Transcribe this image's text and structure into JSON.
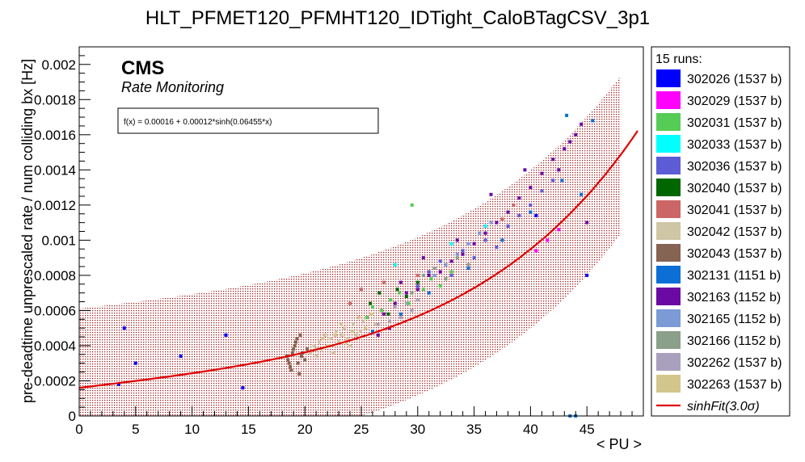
{
  "chart_data": {
    "type": "scatter",
    "title": "HLT_PFMET120_PFMHT120_IDTight_CaloBTagCSV_3p1",
    "xlabel": "< PU >",
    "ylabel": "pre-deadtime unprescaled rate / num colliding bx [Hz]",
    "xlim": [
      0,
      50
    ],
    "ylim": [
      0,
      0.0021
    ],
    "x_ticks": [
      0,
      5,
      10,
      15,
      20,
      25,
      30,
      35,
      40,
      45
    ],
    "y_ticks": [
      0,
      0.0002,
      0.0004,
      0.0006,
      0.0008,
      0.001,
      0.0012,
      0.0014,
      0.0016,
      0.0018,
      0.002
    ],
    "y_tick_labels": [
      "0",
      "0.0002",
      "0.0004",
      "0.0006",
      "0.0008",
      "0.001",
      "0.0012",
      "0.0014",
      "0.0016",
      "0.0018",
      "0.002"
    ],
    "cms_label": "CMS",
    "subtitle": "Rate Monitoring",
    "fit_formula": "f(x) = 0.00016 + 0.00012*sinh(0.06455*x)",
    "fit_params": {
      "a": 0.00016,
      "b": 0.00012,
      "c": 0.06455
    },
    "fit_x_range": [
      0,
      49.5
    ],
    "band_halfwidth": 0.00045,
    "band_x_range": [
      0,
      48
    ],
    "fit_color": "#e00000",
    "band_color": "#a02020",
    "legend": {
      "header": "15 runs:",
      "entries": [
        {
          "label": "302026 (1537 b)",
          "color": "#0000ff"
        },
        {
          "label": "302029 (1537 b)",
          "color": "#ff00ff"
        },
        {
          "label": "302031 (1537 b)",
          "color": "#55cc55"
        },
        {
          "label": "302033 (1537 b)",
          "color": "#00ffff"
        },
        {
          "label": "302036 (1537 b)",
          "color": "#5c5cd6"
        },
        {
          "label": "302040 (1537 b)",
          "color": "#006600"
        },
        {
          "label": "302041 (1537 b)",
          "color": "#cc6666"
        },
        {
          "label": "302042 (1537 b)",
          "color": "#cfc6a6"
        },
        {
          "label": "302043 (1537 b)",
          "color": "#866352"
        },
        {
          "label": "302131 (1151 b)",
          "color": "#0b6fd6"
        },
        {
          "label": "302163 (1152 b)",
          "color": "#6a0aa3"
        },
        {
          "label": "302165 (1152 b)",
          "color": "#7b9ad6"
        },
        {
          "label": "302166 (1152 b)",
          "color": "#8aa08a"
        },
        {
          "label": "302262 (1537 b)",
          "color": "#a8a0bd"
        },
        {
          "label": "302263 (1537 b)",
          "color": "#d3c68c"
        }
      ],
      "fit_entry": "sinhFit(3.0σ)"
    },
    "series": [
      {
        "name": "302043 (1537 b)",
        "color": "#866352",
        "points": [
          [
            18.4,
            0.00034
          ],
          [
            18.5,
            0.00032
          ],
          [
            18.6,
            0.0003
          ],
          [
            18.7,
            0.00028
          ],
          [
            18.8,
            0.00026
          ],
          [
            18.9,
            0.00036
          ],
          [
            19.0,
            0.00038
          ],
          [
            19.1,
            0.0004
          ],
          [
            19.2,
            0.00042
          ],
          [
            19.3,
            0.00044
          ],
          [
            19.4,
            0.0003
          ],
          [
            19.5,
            0.00024
          ],
          [
            19.6,
            0.00046
          ],
          [
            19.7,
            0.00034
          ],
          [
            19.8,
            0.00036
          ],
          [
            20.0,
            0.00032
          ],
          [
            20.2,
            0.00038
          ]
        ]
      },
      {
        "name": "302042 (1537 b)",
        "color": "#cfc6a6",
        "points": [
          [
            20.5,
            0.00036
          ],
          [
            20.8,
            0.0004
          ],
          [
            21.0,
            0.00034
          ],
          [
            21.3,
            0.00042
          ],
          [
            21.5,
            0.00038
          ],
          [
            21.8,
            0.00046
          ],
          [
            22.0,
            0.0004
          ],
          [
            22.3,
            0.00044
          ],
          [
            22.5,
            0.00036
          ],
          [
            22.8,
            0.00048
          ],
          [
            23.0,
            0.00042
          ],
          [
            23.3,
            0.00046
          ],
          [
            23.5,
            0.0005
          ],
          [
            23.8,
            0.00044
          ],
          [
            24.0,
            0.0004
          ],
          [
            24.3,
            0.00052
          ],
          [
            24.6,
            0.00046
          ],
          [
            24.9,
            0.00048
          ],
          [
            25.2,
            0.00054
          ]
        ]
      },
      {
        "name": "302263 (1537 b)",
        "color": "#d3c68c",
        "points": [
          [
            21.0,
            0.00038
          ],
          [
            21.6,
            0.00044
          ],
          [
            22.2,
            0.0004
          ],
          [
            22.7,
            0.00046
          ],
          [
            23.2,
            0.00052
          ],
          [
            23.7,
            0.00042
          ],
          [
            24.2,
            0.00048
          ],
          [
            24.8,
            0.00056
          ],
          [
            25.4,
            0.0005
          ],
          [
            25.9,
            0.00058
          ],
          [
            26.3,
            0.00052
          ]
        ]
      },
      {
        "name": "302262 (1537 b)",
        "color": "#a8a0bd",
        "points": [
          [
            26.5,
            0.00052
          ],
          [
            27.0,
            0.00058
          ],
          [
            27.5,
            0.00054
          ],
          [
            28.0,
            0.00062
          ],
          [
            28.5,
            0.00056
          ],
          [
            29.0,
            0.00064
          ],
          [
            29.5,
            0.0006
          ],
          [
            30.0,
            0.00066
          ]
        ]
      },
      {
        "name": "302031 (1537 b)",
        "color": "#55cc55",
        "points": [
          [
            25.5,
            0.00056
          ],
          [
            26.0,
            0.00062
          ],
          [
            26.8,
            0.0006
          ],
          [
            27.6,
            0.00066
          ],
          [
            28.4,
            0.0007
          ],
          [
            29.2,
            0.00064
          ],
          [
            30.5,
            0.00072
          ],
          [
            31.2,
            0.00078
          ],
          [
            32.0,
            0.00074
          ],
          [
            33.0,
            0.00082
          ],
          [
            29.5,
            0.0012
          ]
        ]
      },
      {
        "name": "302040 (1537 b)",
        "color": "#006600",
        "points": [
          [
            25.8,
            0.00064
          ],
          [
            26.6,
            0.0007
          ],
          [
            27.4,
            0.00058
          ],
          [
            28.2,
            0.00072
          ],
          [
            29.0,
            0.00068
          ],
          [
            30.0,
            0.00076
          ]
        ]
      },
      {
        "name": "302166 (1152 b)",
        "color": "#8aa08a",
        "points": [
          [
            29.5,
            0.0007
          ],
          [
            30.5,
            0.0008
          ],
          [
            31.5,
            0.00084
          ],
          [
            32.5,
            0.00078
          ],
          [
            33.5,
            0.0009
          ],
          [
            34.5,
            0.00086
          ]
        ]
      },
      {
        "name": "302036 (1537 b)",
        "color": "#5c5cd6",
        "points": [
          [
            30.0,
            0.00074
          ],
          [
            31.0,
            0.00082
          ],
          [
            32.0,
            0.00088
          ],
          [
            33.0,
            0.0008
          ],
          [
            34.0,
            0.00094
          ],
          [
            35.0,
            0.0009
          ],
          [
            36.0,
            0.001
          ],
          [
            37.0,
            0.00096
          ],
          [
            38.0,
            0.00108
          ],
          [
            39.0,
            0.00114
          ],
          [
            40.0,
            0.0012
          ],
          [
            41.0,
            0.00128
          ],
          [
            42.0,
            0.00134
          ]
        ]
      },
      {
        "name": "302165 (1152 b)",
        "color": "#7b9ad6",
        "points": [
          [
            31.5,
            0.0008
          ],
          [
            32.5,
            0.00086
          ],
          [
            33.5,
            0.00092
          ],
          [
            34.5,
            0.00098
          ],
          [
            35.5,
            0.00104
          ],
          [
            36.5,
            0.0011
          ]
        ]
      },
      {
        "name": "302163 (1152 b)",
        "color": "#6a0aa3",
        "points": [
          [
            27.0,
            0.00058
          ],
          [
            28.0,
            0.00064
          ],
          [
            29.0,
            0.0007
          ],
          [
            30.0,
            0.00072
          ],
          [
            31.0,
            0.0008
          ],
          [
            32.0,
            0.00082
          ],
          [
            33.0,
            0.00088
          ],
          [
            34.0,
            0.00092
          ],
          [
            35.0,
            0.00098
          ],
          [
            36.0,
            0.00104
          ],
          [
            37.0,
            0.0011
          ],
          [
            38.0,
            0.00116
          ],
          [
            39.0,
            0.00124
          ],
          [
            40.0,
            0.0013
          ],
          [
            41.0,
            0.00138
          ],
          [
            42.0,
            0.00146
          ],
          [
            43.0,
            0.00152
          ],
          [
            44.0,
            0.0016
          ],
          [
            44.5,
            0.00166
          ],
          [
            43.5,
            0.00156
          ],
          [
            42.5,
            0.0014
          ],
          [
            39.5,
            0.0014
          ],
          [
            36.5,
            0.00126
          ],
          [
            33.5,
            0.001
          ],
          [
            30.5,
            0.0009
          ],
          [
            28.5,
            0.00076
          ],
          [
            27.5,
            0.0005
          ],
          [
            26.5,
            0.00046
          ],
          [
            45.0,
            0.0011
          ]
        ]
      },
      {
        "name": "302029 (1537 b)",
        "color": "#ff00ff",
        "points": [
          [
            40.5,
            0.00094
          ],
          [
            41.5,
            0.001
          ],
          [
            42.5,
            0.00106
          ]
        ]
      },
      {
        "name": "302026 (1537 b)",
        "color": "#0000ff",
        "points": [
          [
            3.5,
            0.00018
          ],
          [
            4.0,
            0.0005
          ],
          [
            5.0,
            0.0003
          ],
          [
            9.0,
            0.00034
          ],
          [
            13.0,
            0.00046
          ],
          [
            14.5,
            0.00016
          ],
          [
            40.5,
            0.00114
          ],
          [
            45.0,
            0.0008
          ]
        ]
      },
      {
        "name": "302131 (1151 b)",
        "color": "#0b6fd6",
        "points": [
          [
            26.0,
            0.00048
          ],
          [
            28.5,
            0.00058
          ],
          [
            31.0,
            0.0007
          ],
          [
            34.5,
            0.00084
          ],
          [
            37.5,
            0.001
          ],
          [
            40.0,
            0.00116
          ],
          [
            42.8,
            0.00134
          ],
          [
            43.2,
            0.00171
          ],
          [
            44.5,
            0.00126
          ],
          [
            45.5,
            0.00168
          ],
          [
            43.5,
            0.0
          ],
          [
            44.0,
            0.0
          ]
        ]
      },
      {
        "name": "302033 (1537 b)",
        "color": "#00ffff",
        "points": [
          [
            28.0,
            0.00086
          ],
          [
            33.0,
            0.00098
          ],
          [
            36.0,
            0.00108
          ]
        ]
      },
      {
        "name": "302041 (1537 b)",
        "color": "#cc6666",
        "points": [
          [
            24.0,
            0.00064
          ],
          [
            25.0,
            0.00072
          ],
          [
            27.0,
            0.00076
          ],
          [
            30.0,
            0.0008
          ],
          [
            37.5,
            0.00112
          ],
          [
            38.5,
            0.0012
          ]
        ]
      }
    ]
  }
}
